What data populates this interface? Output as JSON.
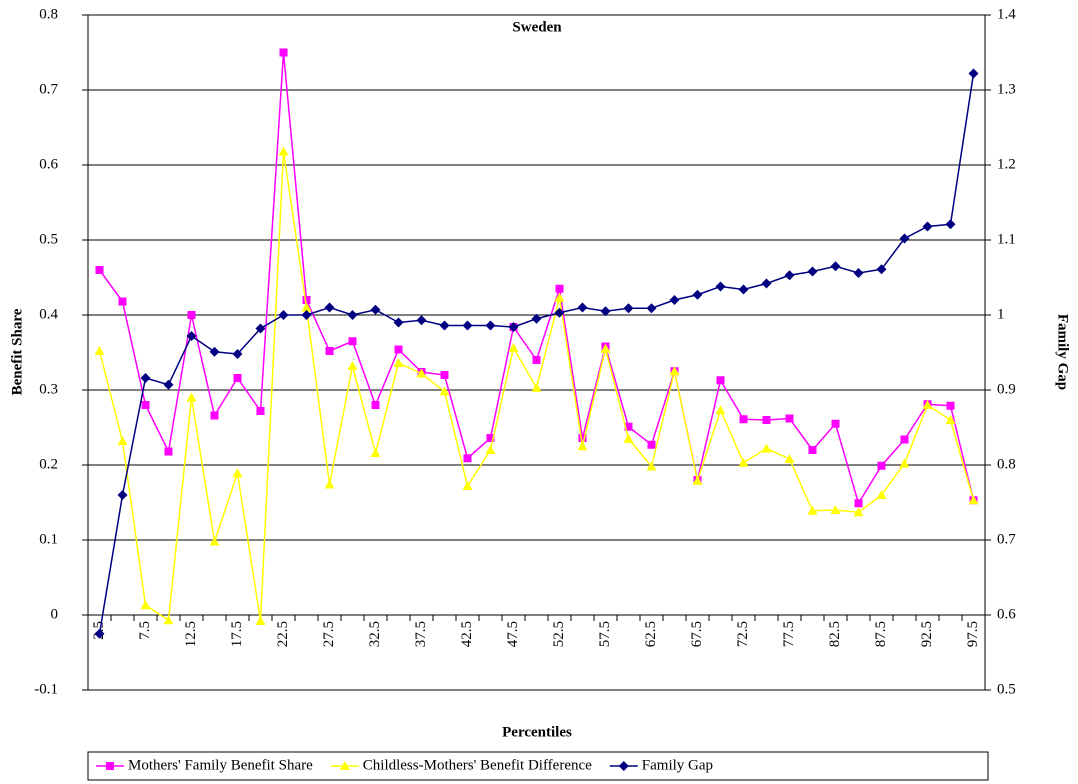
{
  "chart_data": {
    "type": "line",
    "subtitle": "Sweden",
    "x_label": "Percentiles",
    "y_label": "Benefit Share",
    "y2_label": "Family Gap",
    "categories": [
      "2.5",
      null,
      "7.5",
      null,
      "12.5",
      null,
      "17.5",
      null,
      "22.5",
      null,
      "27.5",
      null,
      "32.5",
      null,
      "37.5",
      null,
      "42.5",
      null,
      "47.5",
      null,
      "52.5",
      null,
      "57.5",
      null,
      "62.5",
      null,
      "67.5",
      null,
      "72.5",
      null,
      "77.5",
      null,
      "82.5",
      null,
      "87.5",
      null,
      "92.5",
      null,
      "97.5"
    ],
    "series": [
      {
        "name": "Mothers' Family Benefit Share",
        "color": "#ff00ff",
        "marker": "square",
        "values": [
          0.46,
          0.418,
          0.28,
          0.218,
          0.4,
          0.266,
          0.316,
          0.272,
          0.75,
          0.42,
          0.352,
          0.365,
          0.28,
          0.354,
          0.324,
          0.32,
          0.209,
          0.236,
          0.384,
          0.34,
          0.435,
          0.236,
          0.358,
          0.251,
          0.227,
          0.325,
          0.18,
          0.313,
          0.261,
          0.26,
          0.262,
          0.22,
          0.255,
          0.149,
          0.199,
          0.234,
          0.281,
          0.279,
          0.153
        ]
      },
      {
        "name": "Childless-Mothers' Benefit Difference",
        "color": "#ffff00",
        "marker": "triangle",
        "values": [
          0.352,
          0.232,
          0.013,
          -0.007,
          0.29,
          0.098,
          0.189,
          -0.008,
          0.618,
          0.41,
          0.174,
          0.332,
          0.216,
          0.336,
          0.322,
          0.298,
          0.172,
          0.22,
          0.356,
          0.303,
          0.423,
          0.225,
          0.355,
          0.235,
          0.198,
          0.325,
          0.179,
          0.273,
          0.203,
          0.222,
          0.208,
          0.139,
          0.14,
          0.137,
          0.16,
          0.202,
          0.28,
          0.26,
          0.153
        ]
      },
      {
        "name": "Family Gap",
        "color": "#000080",
        "marker": "diamond",
        "axis": "y2",
        "values": [
          0.575,
          0.76,
          0.916,
          0.907,
          0.972,
          0.951,
          0.948,
          0.982,
          1.0,
          1.0,
          1.01,
          1.0,
          1.007,
          0.99,
          0.993,
          0.986,
          0.986,
          0.986,
          0.984,
          0.995,
          1.003,
          1.01,
          1.005,
          1.009,
          1.009,
          1.02,
          1.027,
          1.038,
          1.034,
          1.042,
          1.053,
          1.058,
          1.065,
          1.056,
          1.061,
          1.102,
          1.118,
          1.121,
          1.322
        ]
      }
    ],
    "ylim": [
      -0.1,
      0.8
    ],
    "yticks": [
      -0.1,
      0,
      0.1,
      0.2,
      0.3,
      0.4,
      0.5,
      0.6,
      0.7,
      0.8
    ],
    "y2lim": [
      0.5,
      1.4
    ],
    "y2ticks": [
      0.5,
      0.6,
      0.7,
      0.8,
      0.9,
      1,
      1.1,
      1.2,
      1.3,
      1.4
    ],
    "grid": true,
    "legend": "bottom"
  }
}
